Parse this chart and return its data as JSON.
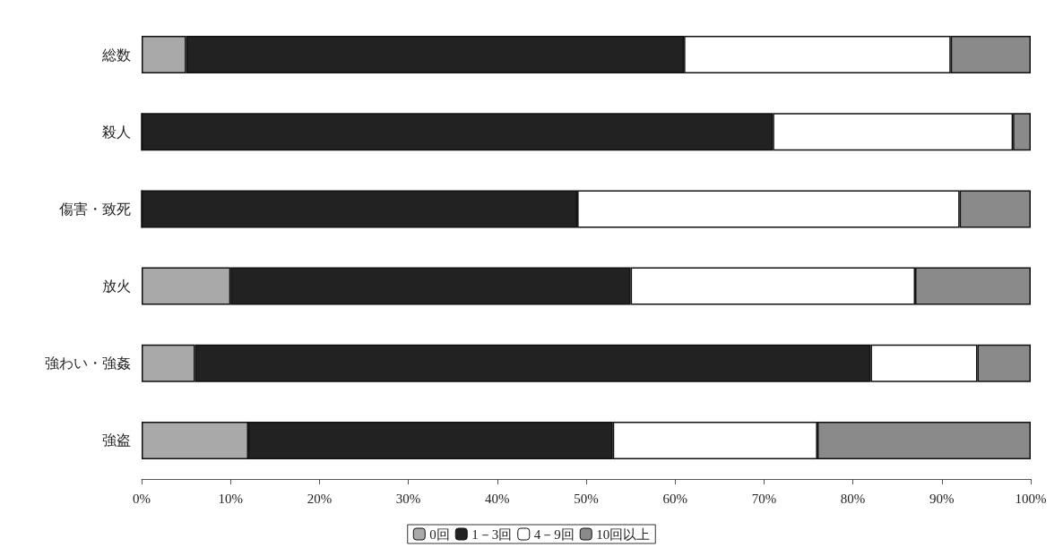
{
  "chart_data": {
    "type": "bar",
    "orientation": "horizontal",
    "stacked": true,
    "categories": [
      "総数",
      "殺人",
      "傷害・致死",
      "放火",
      "強わい・強姦",
      "強盗"
    ],
    "series": [
      {
        "name": "0回",
        "color": "#a9a9a9",
        "values": [
          5,
          0,
          0,
          10,
          6,
          12
        ]
      },
      {
        "name": "1－3回",
        "color": "#222222",
        "values": [
          56,
          71,
          49,
          45,
          76,
          41
        ]
      },
      {
        "name": "4－9回",
        "color": "#ffffff",
        "values": [
          30,
          27,
          43,
          32,
          12,
          23
        ]
      },
      {
        "name": "10回以上",
        "color": "#8a8a8a",
        "values": [
          9,
          2,
          8,
          13,
          6,
          24
        ]
      }
    ],
    "xlim": [
      0,
      100
    ],
    "xticks": [
      {
        "value": 0,
        "label": "0%"
      },
      {
        "value": 10,
        "label": "10%"
      },
      {
        "value": 20,
        "label": "20%"
      },
      {
        "value": 30,
        "label": "30%"
      },
      {
        "value": 40,
        "label": "40%"
      },
      {
        "value": 50,
        "label": "50%"
      },
      {
        "value": 60,
        "label": "60%"
      },
      {
        "value": 70,
        "label": "70%"
      },
      {
        "value": 80,
        "label": "80%"
      },
      {
        "value": 90,
        "label": "90%"
      },
      {
        "value": 100,
        "label": "100%"
      }
    ],
    "grid": false,
    "legend": "bottom"
  }
}
